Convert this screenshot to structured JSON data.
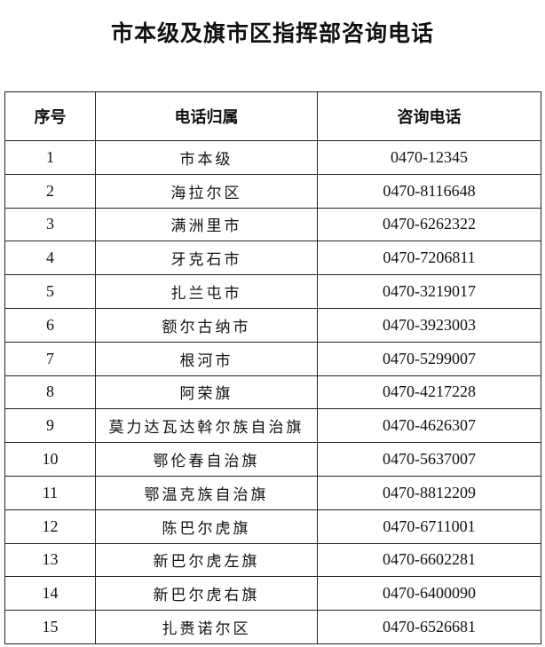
{
  "title": "市本级及旗市区指挥部咨询电话",
  "table": {
    "headers": [
      "序号",
      "电话归属",
      "咨询电话"
    ],
    "rows": [
      [
        "1",
        "市本级",
        "0470-12345"
      ],
      [
        "2",
        "海拉尔区",
        "0470-8116648"
      ],
      [
        "3",
        "满洲里市",
        "0470-6262322"
      ],
      [
        "4",
        "牙克石市",
        "0470-7206811"
      ],
      [
        "5",
        "扎兰屯市",
        "0470-3219017"
      ],
      [
        "6",
        "额尔古纳市",
        "0470-3923003"
      ],
      [
        "7",
        "根河市",
        "0470-5299007"
      ],
      [
        "8",
        "阿荣旗",
        "0470-4217228"
      ],
      [
        "9",
        "莫力达瓦达斡尔族自治旗",
        "0470-4626307"
      ],
      [
        "10",
        "鄂伦春自治旗",
        "0470-5637007"
      ],
      [
        "11",
        "鄂温克族自治旗",
        "0470-8812209"
      ],
      [
        "12",
        "陈巴尔虎旗",
        "0470-6711001"
      ],
      [
        "13",
        "新巴尔虎左旗",
        "0470-6602281"
      ],
      [
        "14",
        "新巴尔虎右旗",
        "0470-6400090"
      ],
      [
        "15",
        "扎赉诺尔区",
        "0470-6526681"
      ]
    ]
  }
}
